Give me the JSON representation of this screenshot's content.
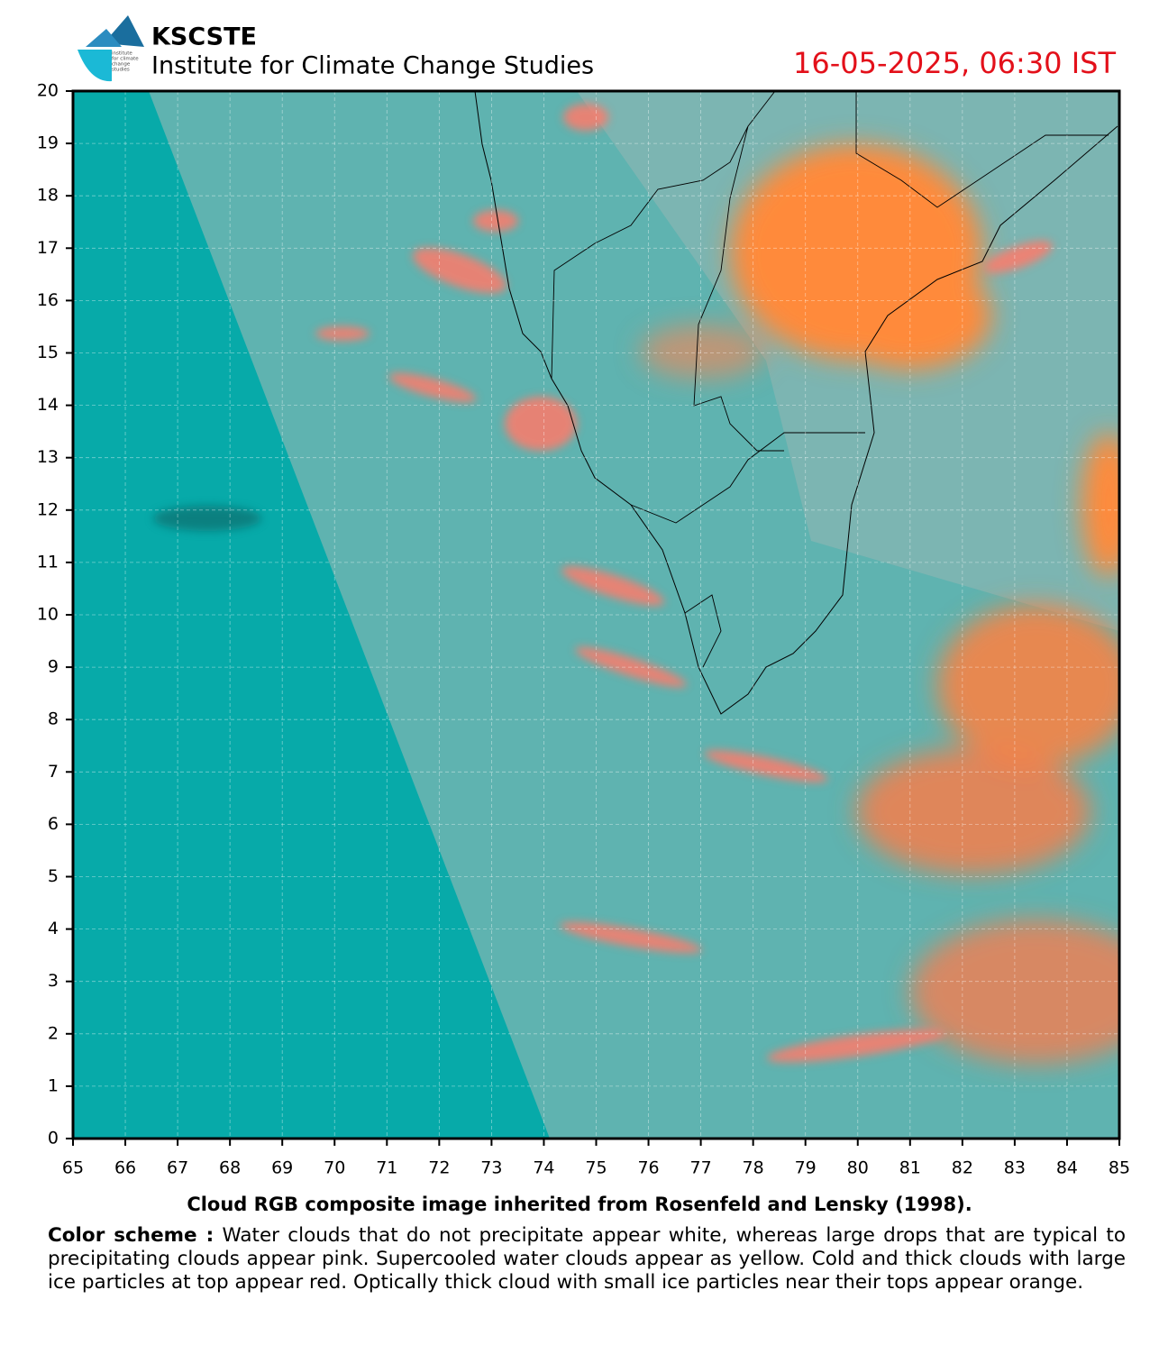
{
  "header": {
    "org": "KSCSTE",
    "institute": "Institute for Climate Change Studies",
    "timestamp": "16-05-2025, 06:30 IST",
    "logo_text": [
      "institute",
      "for climate",
      "change",
      "studies"
    ]
  },
  "map": {
    "xlim": [
      65,
      85
    ],
    "ylim": [
      0,
      20
    ],
    "xticks": [
      65,
      66,
      67,
      68,
      69,
      70,
      71,
      72,
      73,
      74,
      75,
      76,
      77,
      78,
      79,
      80,
      81,
      82,
      83,
      84,
      85
    ],
    "yticks": [
      0,
      1,
      2,
      3,
      4,
      5,
      6,
      7,
      8,
      9,
      10,
      11,
      12,
      13,
      14,
      15,
      16,
      17,
      18,
      19,
      20
    ],
    "grid": true
  },
  "caption": {
    "title": "Cloud RGB composite image inherited from Rosenfeld and Lensky (1998).",
    "scheme_label": "Color scheme :",
    "scheme_text": "Water clouds that do not precipitate appear white, whereas large drops that are typical to precipitating clouds appear pink. Supercooled water clouds appear as yellow. Cold and thick clouds with large ice particles at top appear red. Optically thick cloud with small ice particles near their tops appear orange."
  }
}
